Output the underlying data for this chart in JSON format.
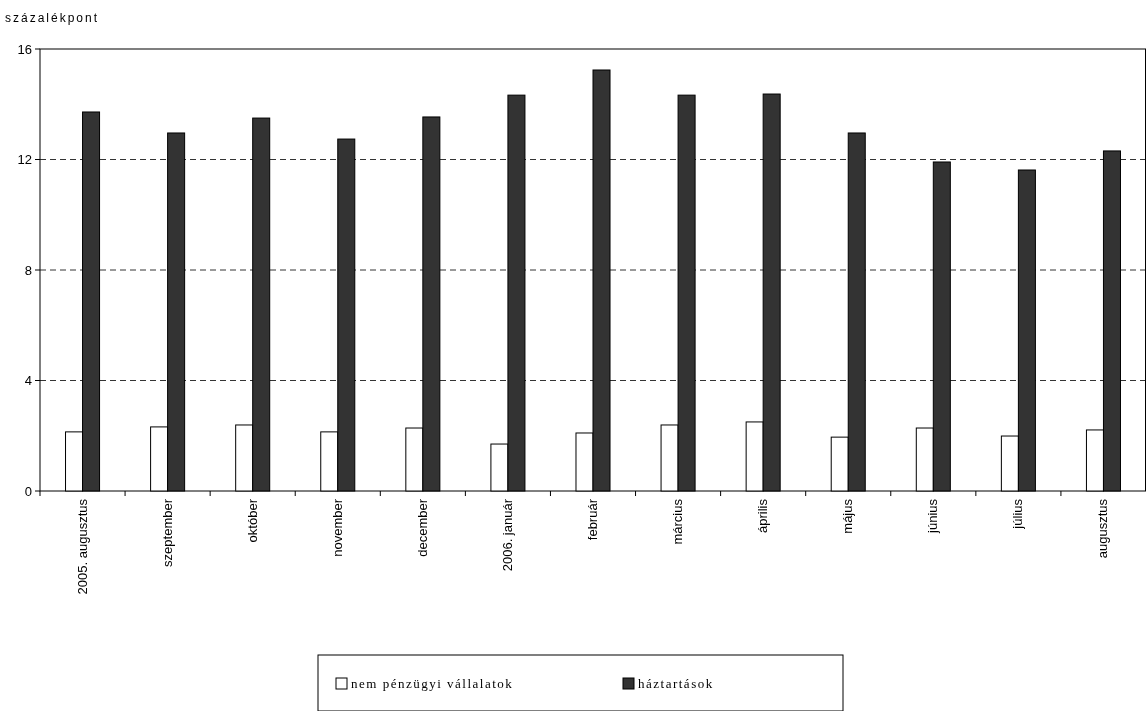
{
  "chart_data": {
    "type": "bar",
    "ylabel": "százalékpont",
    "categories": [
      "2005. augusztus",
      "szeptember",
      "október",
      "november",
      "december",
      "2006. január",
      "február",
      "március",
      "április",
      "május",
      "június",
      "július",
      "augusztus"
    ],
    "series": [
      {
        "name": "nem pénzügyi vállalatok",
        "color": "#ffffff",
        "values": [
          2.14,
          2.32,
          2.39,
          2.14,
          2.28,
          1.7,
          2.1,
          2.39,
          2.5,
          1.95,
          2.28,
          1.99,
          2.21
        ]
      },
      {
        "name": "háztartások",
        "color": "#333333",
        "values": [
          13.72,
          12.96,
          13.5,
          12.74,
          13.54,
          14.33,
          15.24,
          14.33,
          14.37,
          12.96,
          11.91,
          11.62,
          12.31
        ]
      }
    ],
    "ylim": [
      0,
      16
    ],
    "yticks": [
      0,
      4,
      8,
      12,
      16
    ],
    "grid": "y",
    "legend": "bottom"
  }
}
